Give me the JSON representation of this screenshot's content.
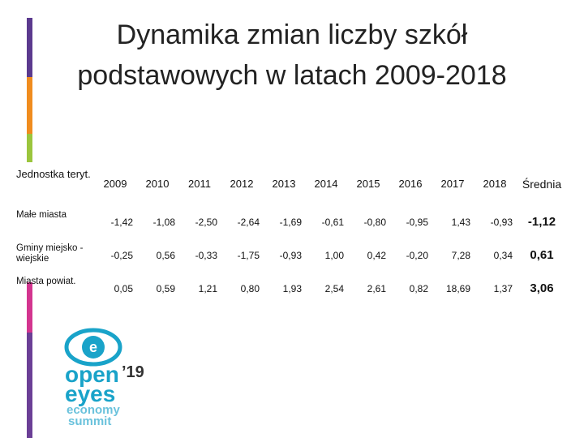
{
  "title": {
    "line1": "Dynamika zmian liczby szkół",
    "line2": "podstawowych w latach 2009-2018"
  },
  "table": {
    "header": [
      "Jednostka teryt.",
      "2009",
      "2010",
      "2011",
      "2012",
      "2013",
      "2014",
      "2015",
      "2016",
      "2017",
      "2018",
      "Średnia"
    ],
    "rows": [
      [
        "Małe miasta",
        "-1,42",
        "-1,08",
        "-2,50",
        "-2,64",
        "-1,69",
        "-0,61",
        "-0,80",
        "-0,95",
        "1,43",
        "-0,93",
        "-1,12"
      ],
      [
        "Gminy miejsko -wiejskie",
        "-0,25",
        "0,56",
        "-0,33",
        "-1,75",
        "-0,93",
        "1,00",
        "0,42",
        "-0,20",
        "7,28",
        "0,34",
        "0,61"
      ],
      [
        "Miasta powiat.",
        "0,05",
        "0,59",
        "1,21",
        "0,80",
        "1,93",
        "2,54",
        "2,61",
        "0,82",
        "18,69",
        "1,37",
        "3,06"
      ]
    ]
  },
  "logo": {
    "open": "open",
    "year": "’19",
    "eyes": "eyes",
    "economy": "economy",
    "summit": "summit"
  }
}
